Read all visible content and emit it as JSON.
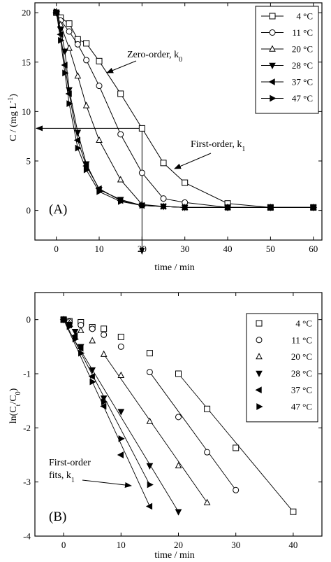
{
  "chart_data": [
    {
      "type": "line",
      "panel_label": "(A)",
      "xlabel": "time / min",
      "ylabel": "C / (mg L",
      "ylabel_sup": "-1",
      "ylabel_end": ")",
      "xlim": [
        -5,
        62
      ],
      "ylim": [
        -3,
        21
      ],
      "xticks": [
        0,
        10,
        20,
        30,
        40,
        50,
        60
      ],
      "yticks": [
        0,
        5,
        10,
        15,
        20
      ],
      "legend": "top-right",
      "series": [
        {
          "name": "4 °C",
          "marker": "square",
          "x": [
            0,
            1,
            3,
            5,
            7,
            10,
            15,
            20,
            25,
            30,
            40,
            50,
            60
          ],
          "y": [
            20.0,
            19.5,
            18.9,
            17.3,
            16.9,
            15.1,
            11.8,
            8.3,
            4.8,
            2.8,
            0.7,
            0.3,
            0.3
          ]
        },
        {
          "name": "11 °C",
          "marker": "circle",
          "x": [
            0,
            1,
            3,
            5,
            7,
            10,
            15,
            20,
            25,
            30,
            40,
            50,
            60
          ],
          "y": [
            20.0,
            19.2,
            18.1,
            16.8,
            15.2,
            12.6,
            7.7,
            3.8,
            1.2,
            0.8,
            0.3,
            0.3,
            0.3
          ]
        },
        {
          "name": "20 °C",
          "marker": "triangle-up",
          "x": [
            0,
            1,
            3,
            5,
            7,
            10,
            15,
            20,
            25,
            30,
            40,
            50,
            60
          ],
          "y": [
            20.1,
            18.8,
            16.4,
            13.6,
            10.6,
            7.1,
            3.1,
            0.6,
            0.4,
            0.3,
            0.3,
            0.3,
            0.3
          ]
        },
        {
          "name": "28 °C",
          "marker": "triangle-down",
          "x": [
            0,
            1,
            2,
            3,
            5,
            7,
            10,
            15,
            20,
            25,
            30,
            40,
            50,
            60
          ],
          "y": [
            20.0,
            18.3,
            16.1,
            12.2,
            7.9,
            4.7,
            2.1,
            1.1,
            0.5,
            0.4,
            0.3,
            0.3,
            0.3,
            0.3
          ]
        },
        {
          "name": "37 °C",
          "marker": "triangle-left",
          "x": [
            0,
            1,
            2,
            3,
            5,
            7,
            10,
            15,
            20,
            25,
            30,
            40,
            50,
            60
          ],
          "y": [
            20.0,
            17.8,
            14.7,
            11.8,
            7.1,
            4.5,
            2.2,
            1.0,
            0.5,
            0.4,
            0.3,
            0.3,
            0.3,
            0.3
          ]
        },
        {
          "name": "47 °C",
          "marker": "triangle-right",
          "x": [
            0,
            1,
            2,
            3,
            5,
            7,
            10,
            15,
            20,
            25,
            30,
            40,
            50,
            60
          ],
          "y": [
            20.1,
            17.2,
            13.9,
            10.8,
            6.3,
            4.1,
            1.9,
            0.9,
            0.5,
            0.4,
            0.3,
            0.3,
            0.3,
            0.3
          ]
        }
      ],
      "annotations": [
        {
          "text": "Zero-order, k",
          "sub": "0",
          "points_to": [
            10,
            15.1
          ]
        },
        {
          "text": "First-order, k",
          "sub": "1",
          "points_to": [
            25,
            4.8
          ]
        }
      ],
      "guides": {
        "time_x": 20,
        "conc_y": 8.3
      }
    },
    {
      "type": "scatter",
      "panel_label": "(B)",
      "xlabel": "time / min",
      "ylabel": "ln(C",
      "ylabel_sub1": "t",
      "ylabel_mid": "/C",
      "ylabel_sub2": "0",
      "ylabel_end": ")",
      "xlim": [
        -5,
        45
      ],
      "ylim": [
        -4,
        0.5
      ],
      "xticks": [
        0,
        10,
        20,
        30,
        40
      ],
      "yticks": [
        0,
        -1,
        -2,
        -3,
        -4
      ],
      "legend": "top-right",
      "series": [
        {
          "name": "4 °C",
          "marker": "square",
          "x": [
            0,
            1,
            3,
            5,
            7,
            10,
            15,
            20,
            25,
            30,
            40
          ],
          "y": [
            0,
            -0.03,
            -0.05,
            -0.14,
            -0.17,
            -0.32,
            -0.62,
            -1.0,
            -1.65,
            -2.37,
            -3.55
          ]
        },
        {
          "name": "11 °C",
          "marker": "circle",
          "x": [
            0,
            1,
            3,
            5,
            7,
            10,
            15,
            20,
            25,
            30
          ],
          "y": [
            0,
            -0.04,
            -0.1,
            -0.17,
            -0.28,
            -0.5,
            -0.97,
            -1.8,
            -2.45,
            -3.15
          ]
        },
        {
          "name": "20 °C",
          "marker": "triangle-up",
          "x": [
            0,
            1,
            3,
            5,
            7,
            10,
            15,
            20,
            25
          ],
          "y": [
            0,
            -0.07,
            -0.2,
            -0.39,
            -0.64,
            -1.03,
            -1.88,
            -2.7,
            -3.38
          ]
        },
        {
          "name": "28 °C",
          "marker": "triangle-down",
          "x": [
            0,
            1,
            2,
            3,
            5,
            7,
            10,
            15,
            20
          ],
          "y": [
            0,
            -0.09,
            -0.22,
            -0.5,
            -0.93,
            -1.45,
            -1.7,
            -2.7,
            -3.55
          ]
        },
        {
          "name": "37 °C",
          "marker": "triangle-left",
          "x": [
            0,
            1,
            2,
            3,
            5,
            7,
            10,
            15
          ],
          "y": [
            0,
            -0.1,
            -0.3,
            -0.53,
            -1.05,
            -1.6,
            -2.5,
            -3.45
          ]
        },
        {
          "name": "47 °C",
          "marker": "triangle-right",
          "x": [
            0,
            1,
            2,
            3,
            5,
            7,
            10,
            15
          ],
          "y": [
            0,
            -0.13,
            -0.36,
            -0.62,
            -1.15,
            -1.52,
            -2.2,
            -3.05
          ]
        }
      ],
      "fits": [
        {
          "series": "4 °C",
          "x": [
            20,
            40
          ],
          "y": [
            -1.0,
            -3.55
          ]
        },
        {
          "series": "11 °C",
          "x": [
            15,
            30
          ],
          "y": [
            -0.97,
            -3.15
          ]
        },
        {
          "series": "20 °C",
          "x": [
            7,
            25
          ],
          "y": [
            -0.64,
            -3.38
          ]
        },
        {
          "series": "28 °C",
          "x": [
            2,
            20
          ],
          "y": [
            -0.4,
            -3.55
          ]
        },
        {
          "series": "37 °C",
          "x": [
            0,
            15
          ],
          "y": [
            0,
            -3.45
          ]
        },
        {
          "series": "47 °C",
          "x": [
            0,
            15
          ],
          "y": [
            0,
            -3.05
          ]
        }
      ],
      "annotations": [
        {
          "line1": "First-order",
          "line2": "fits, k",
          "sub": "1",
          "points_to": [
            10.5,
            -2.95
          ]
        }
      ]
    }
  ]
}
